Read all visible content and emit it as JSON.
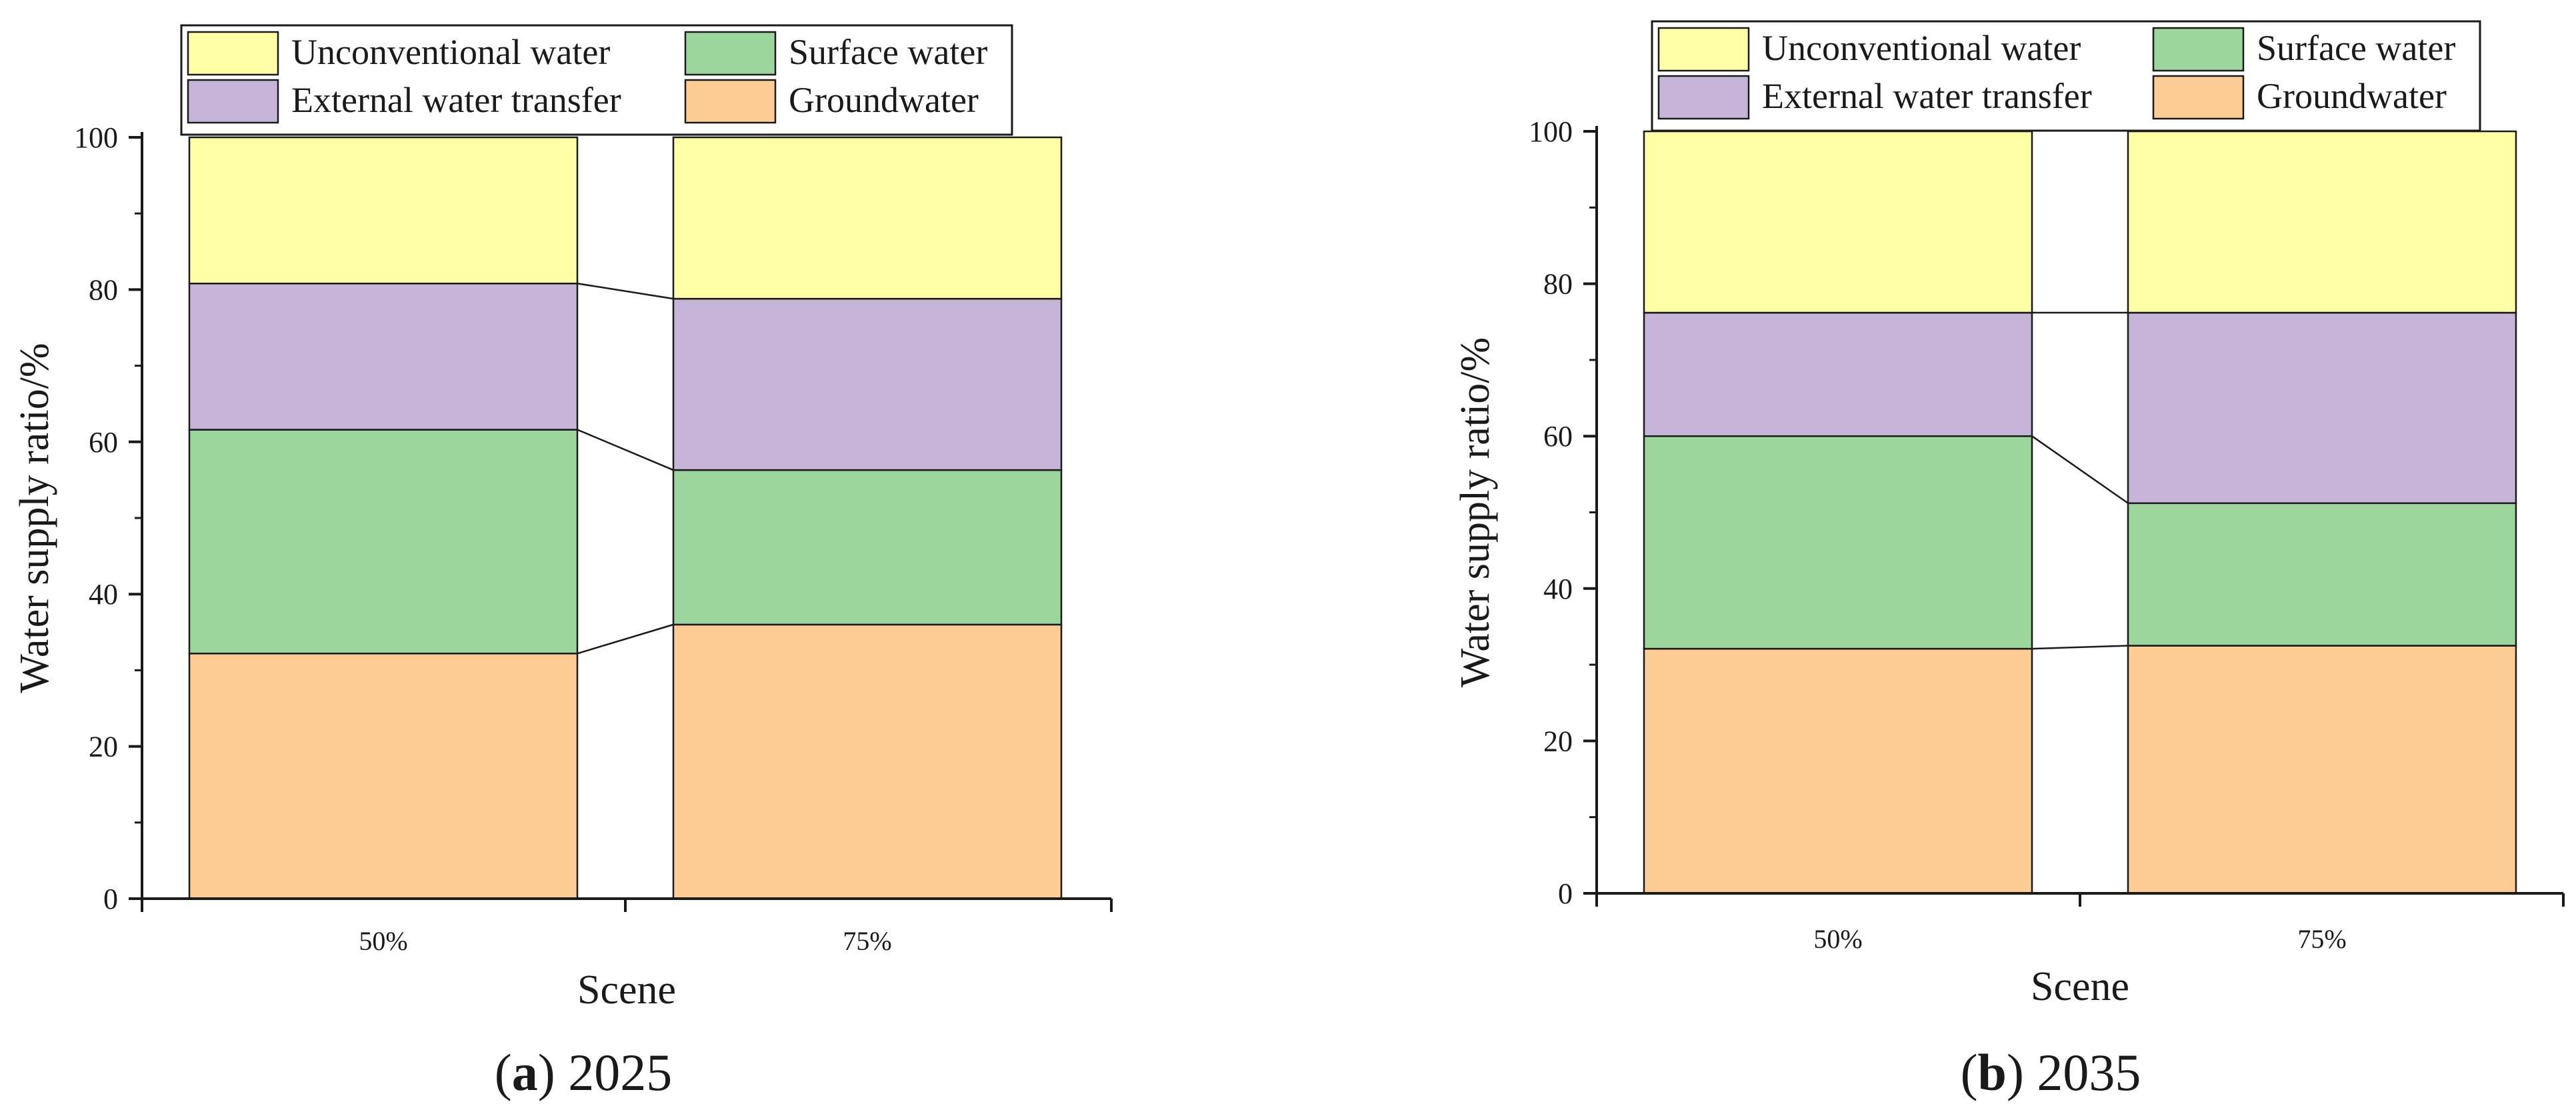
{
  "colors": {
    "Unconventional water": "#FFFFA8",
    "Surface water": "#9DD69C",
    "External water transfer": "#C5B4D8",
    "Groundwater": "#FDCB94",
    "axis": "#1a1a1a"
  },
  "chart_data": [
    {
      "type": "bar",
      "stacked": true,
      "caption": {
        "letter": "a",
        "year": "2025"
      },
      "xlabel": "Scene",
      "ylabel": "Water supply ratio/%",
      "ylim": [
        0,
        100
      ],
      "yticks": [
        "0",
        "20",
        "40",
        "60",
        "80",
        "100"
      ],
      "categories": [
        "50%",
        "75%"
      ],
      "legend_order": [
        "Unconventional water",
        "Surface water",
        "External water transfer",
        "Groundwater"
      ],
      "series": [
        {
          "name": "Groundwater",
          "values": [
            32.2,
            36.0
          ]
        },
        {
          "name": "Surface water",
          "values": [
            29.4,
            20.3
          ]
        },
        {
          "name": "External water transfer",
          "values": [
            19.2,
            22.5
          ]
        },
        {
          "name": "Unconventional water",
          "values": [
            19.2,
            21.2
          ]
        }
      ]
    },
    {
      "type": "bar",
      "stacked": true,
      "caption": {
        "letter": "b",
        "year": "2035"
      },
      "xlabel": "Scene",
      "ylabel": "Water supply ratio/%",
      "ylim": [
        0,
        100
      ],
      "yticks": [
        "0",
        "20",
        "40",
        "60",
        "80",
        "100"
      ],
      "categories": [
        "50%",
        "75%"
      ],
      "legend_order": [
        "Unconventional water",
        "Surface water",
        "External water transfer",
        "Groundwater"
      ],
      "series": [
        {
          "name": "Groundwater",
          "values": [
            32.1,
            32.5
          ]
        },
        {
          "name": "Surface water",
          "values": [
            27.9,
            18.7
          ]
        },
        {
          "name": "External water transfer",
          "values": [
            16.2,
            25.0
          ]
        },
        {
          "name": "Unconventional water",
          "values": [
            23.8,
            23.8
          ]
        }
      ]
    }
  ]
}
